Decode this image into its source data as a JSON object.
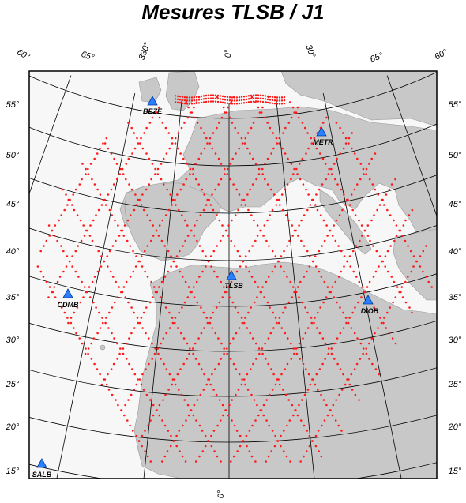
{
  "title": "Mesures TLSB / J1",
  "colors": {
    "land": "#c8c8c8",
    "sea": "#f7f7f7",
    "track": "#ff0000",
    "station": "#2a7fff",
    "grid": "#000000"
  },
  "longitude_labels_top": [
    "60°",
    "65°",
    "330°",
    "0°",
    "30°",
    "65°",
    "60°"
  ],
  "longitude_labels_bottom": [
    "0°"
  ],
  "latitude_labels_left": [
    "55°",
    "50°",
    "45°",
    "40°",
    "35°",
    "30°",
    "25°",
    "20°",
    "15°"
  ],
  "latitude_labels_right": [
    "55°",
    "50°",
    "45°",
    "40°",
    "35°",
    "30°",
    "25°",
    "20°",
    "15°"
  ],
  "stations": [
    {
      "name": "BEZE",
      "icon": "triangle-marker"
    },
    {
      "name": "METR",
      "icon": "triangle-marker"
    },
    {
      "name": "TLSB",
      "icon": "triangle-marker"
    },
    {
      "name": "DIOB",
      "icon": "triangle-marker"
    },
    {
      "name": "CDMB",
      "icon": "triangle-marker"
    },
    {
      "name": "SALB",
      "icon": "triangle-marker"
    }
  ]
}
